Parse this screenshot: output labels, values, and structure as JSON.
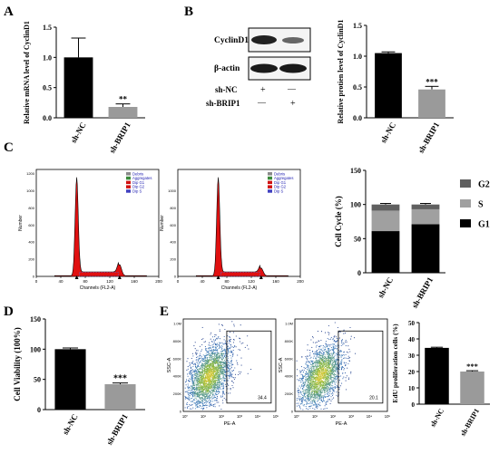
{
  "panels": {
    "a": {
      "letter": "A",
      "chart_data": {
        "type": "bar",
        "categories": [
          "sh-NC",
          "sh-BRIP1"
        ],
        "values": [
          1.0,
          0.18
        ],
        "errors": [
          0.32,
          0.05
        ],
        "colors": [
          "#000000",
          "#9a9a9a"
        ],
        "ylabel": "Relative mRNA level of CyclinD1",
        "ylim": [
          0,
          1.5
        ],
        "yticks": [
          "0.0",
          "0.5",
          "1.0",
          "1.5"
        ],
        "annotation": "**"
      }
    },
    "b": {
      "letter": "B",
      "blot": {
        "protein1": "CyclinD1",
        "protein2": "β-actin",
        "row1": "sh-NC",
        "row2": "sh-BRIP1",
        "row1_marks": [
          "+",
          "—"
        ],
        "row2_marks": [
          "—",
          "+"
        ]
      },
      "chart_data": {
        "type": "bar",
        "categories": [
          "sh-NC",
          "sh-BRIP1"
        ],
        "values": [
          1.05,
          0.46
        ],
        "errors": [
          0.02,
          0.05
        ],
        "colors": [
          "#000000",
          "#9a9a9a"
        ],
        "ylabel": "Relative protien level of CyclinD1",
        "ylim": [
          0,
          1.5
        ],
        "yticks": [
          "0.0",
          "0.5",
          "1.0",
          "1.5"
        ],
        "annotation": "***"
      }
    },
    "c": {
      "letter": "C",
      "flow_legend": [
        "Debris",
        "Aggregates",
        "Dip G1",
        "Dip G2",
        "Dip S"
      ],
      "flow_legend_colors": [
        "#8a8a8a",
        "#3a8a3a",
        "#d01010",
        "#d01010",
        "#4040c0"
      ],
      "flow_xlabel": "Channels (FL2-A)",
      "flow_ylabel": "Number",
      "flow_xticks": [
        "0",
        "40",
        "80",
        "120",
        "160",
        "200"
      ],
      "flow_yticks_left": [
        "0",
        "200",
        "400",
        "600",
        "800",
        "1000",
        "1200"
      ],
      "flow_yticks_right": [
        "0",
        "200",
        "400",
        "600",
        "800",
        "1000"
      ],
      "chart_data": {
        "type": "bar",
        "stacked": true,
        "categories": [
          "sh-NC",
          "sh-BRIP1"
        ],
        "series": [
          {
            "name": "G1",
            "values": [
              61,
              71
            ],
            "color": "#000000"
          },
          {
            "name": "S",
            "values": [
              30,
              22
            ],
            "color": "#a0a0a0"
          },
          {
            "name": "G2",
            "values": [
              9,
              7
            ],
            "color": "#606060"
          }
        ],
        "ylabel": "Cell Cycle (%)",
        "ylim": [
          0,
          150
        ],
        "yticks": [
          "0",
          "50",
          "100",
          "150"
        ],
        "legend_position": "top-right"
      }
    },
    "d": {
      "letter": "D",
      "chart_data": {
        "type": "bar",
        "categories": [
          "sh-NC",
          "sh-BRIP1"
        ],
        "values": [
          100,
          42
        ],
        "errors": [
          2,
          2
        ],
        "colors": [
          "#000000",
          "#9a9a9a"
        ],
        "ylabel": "Cell Viability (100%)",
        "ylim": [
          0,
          150
        ],
        "yticks": [
          "0",
          "50",
          "100",
          "150"
        ],
        "annotation": "***"
      }
    },
    "e": {
      "letter": "E",
      "scatter_xlabel": "PE-A",
      "scatter_ylabel": "SSC-A",
      "gate_values": [
        "34.4",
        "20.1"
      ],
      "scatter_xticks": [
        "10⁰",
        "10¹",
        "10²",
        "10³",
        "10⁴",
        "10⁵"
      ],
      "scatter_yticks": [
        "0",
        "200K",
        "400K",
        "600K",
        "800K",
        "1.0M"
      ],
      "chart_data": {
        "type": "bar",
        "categories": [
          "sh-NC",
          "sh-BRIP1"
        ],
        "values": [
          34.5,
          20.0
        ],
        "errors": [
          0.4,
          0.5
        ],
        "colors": [
          "#000000",
          "#9a9a9a"
        ],
        "ylabel": "EdU proliferation cells (%)",
        "ylim": [
          0,
          50
        ],
        "yticks": [
          "0",
          "10",
          "20",
          "30",
          "40",
          "50"
        ],
        "annotation": "***"
      }
    }
  }
}
